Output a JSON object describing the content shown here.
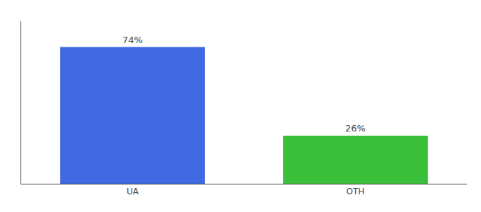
{
  "chart_data": {
    "type": "bar",
    "categories": [
      "UA",
      "OTH"
    ],
    "values": [
      74,
      26
    ],
    "value_labels": [
      "74%",
      "26%"
    ],
    "colors": [
      "#4169e1",
      "#3abf3a"
    ],
    "ylim": [
      0,
      88
    ],
    "grid": false,
    "data_labels": true,
    "tick_labels": "x"
  }
}
